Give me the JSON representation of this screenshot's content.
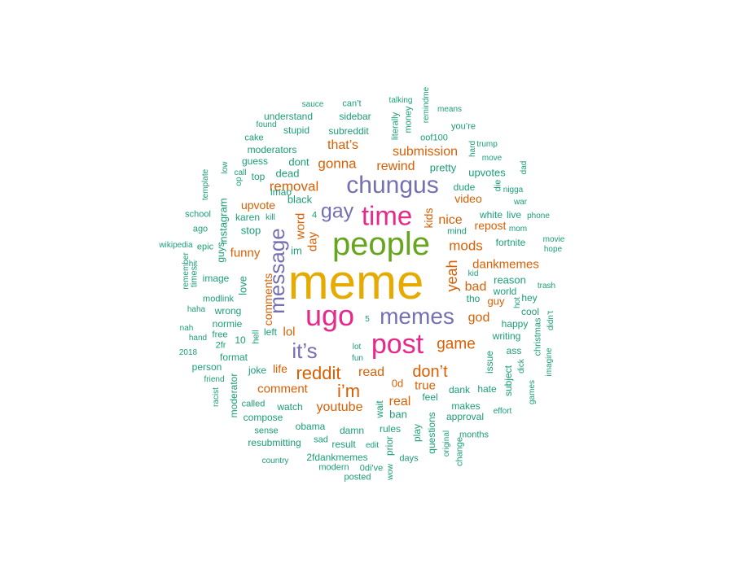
{
  "palette": {
    "green": "#1b9e77",
    "orange": "#d95f02",
    "purple": "#7570b3",
    "pink": "#e7298a",
    "lime": "#66a61e",
    "gold": "#e6ab02"
  },
  "words": [
    {
      "text": "meme",
      "color": "gold"
    },
    {
      "text": "people",
      "color": "lime"
    },
    {
      "text": "time",
      "color": "pink"
    },
    {
      "text": "chungus",
      "color": "purple"
    },
    {
      "text": "ugo",
      "color": "pink"
    },
    {
      "text": "post",
      "color": "pink"
    },
    {
      "text": "memes",
      "color": "purple"
    },
    {
      "text": "message",
      "color": "purple"
    },
    {
      "text": "it’s",
      "color": "purple"
    },
    {
      "text": "gay",
      "color": "purple"
    },
    {
      "text": "reddit",
      "color": "orange"
    },
    {
      "text": "i’m",
      "color": "orange"
    },
    {
      "text": "don’t",
      "color": "orange"
    },
    {
      "text": "game",
      "color": "orange"
    },
    {
      "text": "yeah",
      "color": "orange"
    },
    {
      "text": "mods",
      "color": "orange"
    },
    {
      "text": "nice",
      "color": "orange"
    },
    {
      "text": "removal",
      "color": "orange"
    },
    {
      "text": "gonna",
      "color": "orange"
    },
    {
      "text": "rewind",
      "color": "orange"
    },
    {
      "text": "submission",
      "color": "orange"
    },
    {
      "text": "that’s",
      "color": "orange"
    },
    {
      "text": "youtube",
      "color": "orange"
    },
    {
      "text": "read",
      "color": "orange"
    },
    {
      "text": "comment",
      "color": "orange"
    },
    {
      "text": "real",
      "color": "orange"
    },
    {
      "text": "true",
      "color": "orange"
    },
    {
      "text": "god",
      "color": "orange"
    },
    {
      "text": "bad",
      "color": "orange"
    },
    {
      "text": "dankmemes",
      "color": "orange"
    },
    {
      "text": "repost",
      "color": "orange"
    },
    {
      "text": "video",
      "color": "orange"
    },
    {
      "text": "funny",
      "color": "orange"
    },
    {
      "text": "upvote",
      "color": "orange"
    },
    {
      "text": "lol",
      "color": "orange"
    },
    {
      "text": "word",
      "color": "orange"
    },
    {
      "text": "day",
      "color": "orange"
    },
    {
      "text": "comments",
      "color": "orange"
    },
    {
      "text": "life",
      "color": "orange"
    },
    {
      "text": "kids",
      "color": "orange"
    },
    {
      "text": "guy",
      "color": "orange"
    },
    {
      "text": "0d",
      "color": "orange"
    },
    {
      "text": "dead",
      "color": "green"
    },
    {
      "text": "dont",
      "color": "green"
    },
    {
      "text": "pretty",
      "color": "green"
    },
    {
      "text": "upvotes",
      "color": "green"
    },
    {
      "text": "black",
      "color": "green"
    },
    {
      "text": "lmao",
      "color": "green"
    },
    {
      "text": "dude",
      "color": "green"
    },
    {
      "text": "4",
      "color": "green"
    },
    {
      "text": "im",
      "color": "green"
    },
    {
      "text": "mind",
      "color": "green"
    },
    {
      "text": "white",
      "color": "green"
    },
    {
      "text": "live",
      "color": "green"
    },
    {
      "text": "fortnite",
      "color": "green"
    },
    {
      "text": "reason",
      "color": "green"
    },
    {
      "text": "world",
      "color": "green"
    },
    {
      "text": "tho",
      "color": "green"
    },
    {
      "text": "hey",
      "color": "green"
    },
    {
      "text": "cool",
      "color": "green"
    },
    {
      "text": "happy",
      "color": "green"
    },
    {
      "text": "writing",
      "color": "green"
    },
    {
      "text": "ass",
      "color": "green"
    },
    {
      "text": "issue",
      "color": "green"
    },
    {
      "text": "subject",
      "color": "green"
    },
    {
      "text": "hate",
      "color": "green"
    },
    {
      "text": "dank",
      "color": "green"
    },
    {
      "text": "feel",
      "color": "green"
    },
    {
      "text": "makes",
      "color": "green"
    },
    {
      "text": "approval",
      "color": "green"
    },
    {
      "text": "ban",
      "color": "green"
    },
    {
      "text": "wait",
      "color": "green"
    },
    {
      "text": "rules",
      "color": "green"
    },
    {
      "text": "play",
      "color": "green"
    },
    {
      "text": "questions",
      "color": "green"
    },
    {
      "text": "prior",
      "color": "green"
    },
    {
      "text": "damn",
      "color": "green"
    },
    {
      "text": "obama",
      "color": "green"
    },
    {
      "text": "result",
      "color": "green"
    },
    {
      "text": "edit",
      "color": "green"
    },
    {
      "text": "watch",
      "color": "green"
    },
    {
      "text": "compose",
      "color": "green"
    },
    {
      "text": "sense",
      "color": "green"
    },
    {
      "text": "resubmitting",
      "color": "green"
    },
    {
      "text": "sad",
      "color": "green"
    },
    {
      "text": "2fdankmemes",
      "color": "green"
    },
    {
      "text": "modern",
      "color": "green"
    },
    {
      "text": "0di've",
      "color": "green"
    },
    {
      "text": "posted",
      "color": "green"
    },
    {
      "text": "country",
      "color": "green"
    },
    {
      "text": "wow",
      "color": "green"
    },
    {
      "text": "days",
      "color": "green"
    },
    {
      "text": "original",
      "color": "green"
    },
    {
      "text": "change",
      "color": "green"
    },
    {
      "text": "months",
      "color": "green"
    },
    {
      "text": "called",
      "color": "green"
    },
    {
      "text": "moderator",
      "color": "green"
    },
    {
      "text": "joke",
      "color": "green"
    },
    {
      "text": "lot",
      "color": "green"
    },
    {
      "text": "fun",
      "color": "green"
    },
    {
      "text": "left",
      "color": "green"
    },
    {
      "text": "hell",
      "color": "green"
    },
    {
      "text": "format",
      "color": "green"
    },
    {
      "text": "10",
      "color": "green"
    },
    {
      "text": "2fr",
      "color": "green"
    },
    {
      "text": "free",
      "color": "green"
    },
    {
      "text": "normie",
      "color": "green"
    },
    {
      "text": "wrong",
      "color": "green"
    },
    {
      "text": "love",
      "color": "green"
    },
    {
      "text": "image",
      "color": "green"
    },
    {
      "text": "modlink",
      "color": "green"
    },
    {
      "text": "guys",
      "color": "green"
    },
    {
      "text": "stop",
      "color": "green"
    },
    {
      "text": "karen",
      "color": "green"
    },
    {
      "text": "kill",
      "color": "green"
    },
    {
      "text": "instagram",
      "color": "green"
    },
    {
      "text": "school",
      "color": "green"
    },
    {
      "text": "ago",
      "color": "green"
    },
    {
      "text": "epic",
      "color": "green"
    },
    {
      "text": "times",
      "color": "green"
    },
    {
      "text": "hit",
      "color": "green"
    },
    {
      "text": "remember",
      "color": "green"
    },
    {
      "text": "haha",
      "color": "green"
    },
    {
      "text": "nah",
      "color": "green"
    },
    {
      "text": "hand",
      "color": "green"
    },
    {
      "text": "2018",
      "color": "green"
    },
    {
      "text": "person",
      "color": "green"
    },
    {
      "text": "friend",
      "color": "green"
    },
    {
      "text": "racist",
      "color": "green"
    },
    {
      "text": "wikipedia",
      "color": "green"
    },
    {
      "text": "template",
      "color": "green"
    },
    {
      "text": "low",
      "color": "green"
    },
    {
      "text": "call",
      "color": "green"
    },
    {
      "text": "op",
      "color": "green"
    },
    {
      "text": "top",
      "color": "green"
    },
    {
      "text": "guess",
      "color": "green"
    },
    {
      "text": "moderators",
      "color": "green"
    },
    {
      "text": "cake",
      "color": "green"
    },
    {
      "text": "found",
      "color": "green"
    },
    {
      "text": "stupid",
      "color": "green"
    },
    {
      "text": "understand",
      "color": "green"
    },
    {
      "text": "sauce",
      "color": "green"
    },
    {
      "text": "can’t",
      "color": "green"
    },
    {
      "text": "sidebar",
      "color": "green"
    },
    {
      "text": "subreddit",
      "color": "green"
    },
    {
      "text": "talking",
      "color": "green"
    },
    {
      "text": "literally",
      "color": "green"
    },
    {
      "text": "money",
      "color": "green"
    },
    {
      "text": "remindme",
      "color": "green"
    },
    {
      "text": "means",
      "color": "green"
    },
    {
      "text": "you’re",
      "color": "green"
    },
    {
      "text": "oof100",
      "color": "green"
    },
    {
      "text": "trump",
      "color": "green"
    },
    {
      "text": "hard",
      "color": "green"
    },
    {
      "text": "move",
      "color": "green"
    },
    {
      "text": "dad",
      "color": "green"
    },
    {
      "text": "die",
      "color": "green"
    },
    {
      "text": "nigga",
      "color": "green"
    },
    {
      "text": "war",
      "color": "green"
    },
    {
      "text": "phone",
      "color": "green"
    },
    {
      "text": "mom",
      "color": "green"
    },
    {
      "text": "movie",
      "color": "green"
    },
    {
      "text": "hope",
      "color": "green"
    },
    {
      "text": "kid",
      "color": "green"
    },
    {
      "text": "hot",
      "color": "green"
    },
    {
      "text": "trash",
      "color": "green"
    },
    {
      "text": "didn’t",
      "color": "green"
    },
    {
      "text": "christmas",
      "color": "green"
    },
    {
      "text": "imagine",
      "color": "green"
    },
    {
      "text": "dick",
      "color": "green"
    },
    {
      "text": "games",
      "color": "green"
    },
    {
      "text": "effort",
      "color": "green"
    },
    {
      "text": "5",
      "color": "green"
    }
  ]
}
